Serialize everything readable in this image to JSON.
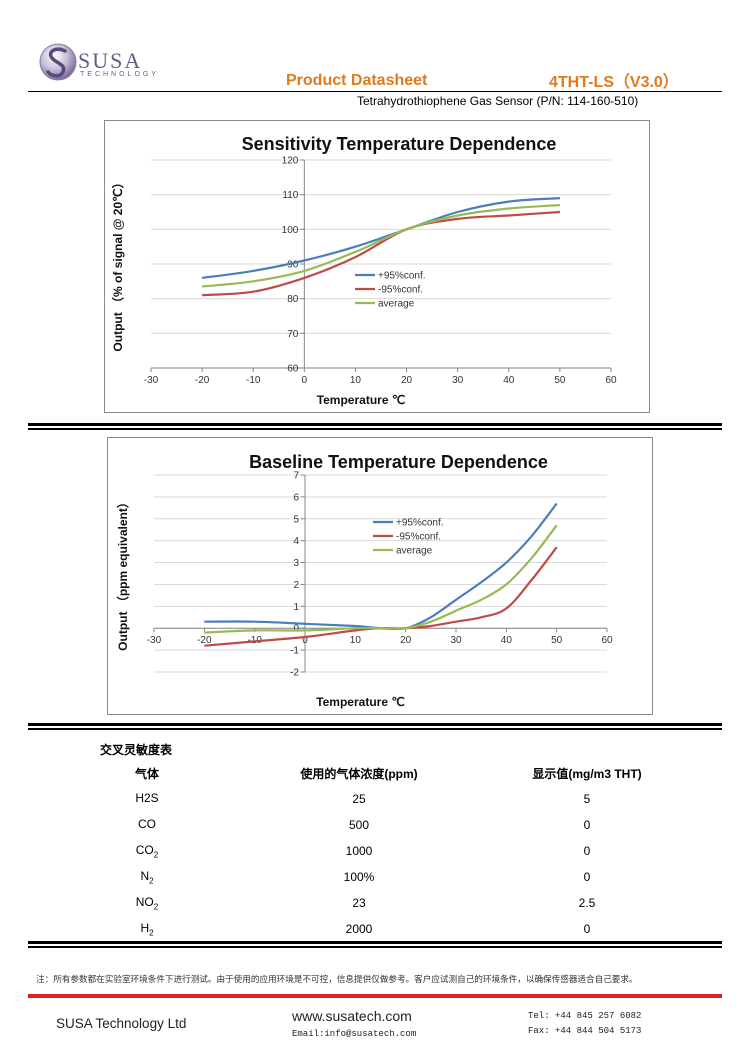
{
  "header": {
    "logo_text": "SUSA",
    "logo_sub": "TECHNOLOGY",
    "doc_type": "Product Datasheet",
    "model": "4THT-LS（V3.0）",
    "subtitle": "Tetrahydrothiophene Gas Sensor (P/N: 114-160-510)"
  },
  "colors": {
    "series_plus": "#4a7ebb",
    "series_minus": "#be4b48",
    "series_avg": "#98b954",
    "accent": "#e07a1c",
    "footer_bar": "#e02020"
  },
  "chart_data": [
    {
      "type": "line",
      "title": "Sensitivity Temperature Dependence",
      "xlabel": "Temperature ℃",
      "ylabel": "Output （% of signal @ 20℃）",
      "xlim": [
        -30,
        60
      ],
      "ylim": [
        60,
        120
      ],
      "xticks": [
        "-30",
        "-20",
        "-10",
        "0",
        "10",
        "20",
        "30",
        "40",
        "50",
        "60"
      ],
      "yticks": [
        "60",
        "70",
        "80",
        "90",
        "100",
        "110",
        "120"
      ],
      "grid": "horizontal",
      "legend_position": "right-middle",
      "x": [
        -20,
        -10,
        0,
        10,
        20,
        30,
        40,
        50
      ],
      "series": [
        {
          "name": "+95%conf.",
          "values": [
            86,
            88,
            91,
            95,
            100,
            105,
            108,
            109
          ]
        },
        {
          "name": "-95%conf.",
          "values": [
            81,
            82,
            86,
            92,
            100,
            103,
            104,
            105
          ]
        },
        {
          "name": "average",
          "values": [
            83.5,
            85,
            88,
            93.5,
            100,
            104,
            106,
            107
          ]
        }
      ]
    },
    {
      "type": "line",
      "title": "Baseline Temperature Dependence",
      "xlabel": "Temperature ℃",
      "ylabel": "Output （ppm equivalent）",
      "xlim": [
        -30,
        60
      ],
      "ylim": [
        -2,
        7
      ],
      "xticks": [
        "-30",
        "-20",
        "-10",
        "0",
        "10",
        "20",
        "30",
        "40",
        "50",
        "60"
      ],
      "yticks": [
        "-2",
        "-1",
        "0",
        "1",
        "2",
        "3",
        "4",
        "5",
        "6",
        "7"
      ],
      "grid": "horizontal",
      "legend_position": "center",
      "x": [
        -20,
        -10,
        0,
        10,
        15,
        20,
        25,
        30,
        35,
        40,
        45,
        50
      ],
      "series": [
        {
          "name": "+95%conf.",
          "values": [
            0.3,
            0.3,
            0.2,
            0.1,
            0.0,
            0.0,
            0.5,
            1.3,
            2.1,
            3.0,
            4.2,
            5.7
          ]
        },
        {
          "name": "-95%conf.",
          "values": [
            -0.8,
            -0.6,
            -0.4,
            -0.1,
            0.0,
            0.0,
            0.1,
            0.3,
            0.5,
            0.9,
            2.2,
            3.7
          ]
        },
        {
          "name": "average",
          "values": [
            -0.2,
            -0.1,
            -0.1,
            0.0,
            0.0,
            0.0,
            0.3,
            0.8,
            1.3,
            2.0,
            3.2,
            4.7
          ]
        }
      ]
    }
  ],
  "cross_sensitivity": {
    "title": "交叉灵敏度表",
    "headers": [
      "气体",
      "使用的气体浓度(ppm)",
      "显示值(mg/m3 THT)"
    ],
    "rows": [
      {
        "gas": "H2S",
        "gas_sub": "",
        "conc": "25",
        "reading": "5"
      },
      {
        "gas": "CO",
        "gas_sub": "",
        "conc": "500",
        "reading": "0"
      },
      {
        "gas": "CO",
        "gas_sub": "2",
        "conc": "1000",
        "reading": "0"
      },
      {
        "gas": "N",
        "gas_sub": "2",
        "conc": "100%",
        "reading": "0"
      },
      {
        "gas": "NO",
        "gas_sub": "2",
        "conc": "23",
        "reading": "2.5"
      },
      {
        "gas": "H",
        "gas_sub": "2",
        "conc": "2000",
        "reading": "0"
      }
    ]
  },
  "note": "注：所有参数都在实验室环境条件下进行测试。由于使用的应用环境是不可控，信息提供仅做参考。客户应试测自己的环境条件，以确保传感器适合自己要求。",
  "footer": {
    "company": "SUSA Technology Ltd",
    "website": "www.susatech.com",
    "email": "Email:info@susatech.com",
    "tel": "Tel: +44 845 257 6082",
    "fax": "Fax: +44 844 504 5173"
  }
}
